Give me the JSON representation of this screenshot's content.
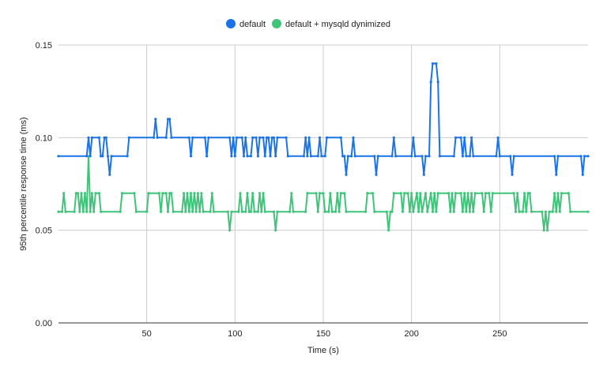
{
  "chart_data": {
    "type": "line",
    "title": "",
    "xlabel": "Time (s)",
    "ylabel": "95th percentile response time (ms)",
    "xlim": [
      0,
      300
    ],
    "ylim": [
      0,
      0.15
    ],
    "x_ticks": [
      50,
      100,
      150,
      200,
      250
    ],
    "y_ticks": [
      0.0,
      0.05,
      0.1,
      0.15
    ],
    "y_tick_labels": [
      "0.00",
      "0.05",
      "0.10",
      "0.15"
    ],
    "grid": true,
    "legend_position": "top",
    "series": [
      {
        "name": "default",
        "color": "#1a73e8",
        "points": [
          [
            0,
            0.09
          ],
          [
            16,
            0.09
          ],
          [
            17,
            0.1
          ],
          [
            18,
            0.09
          ],
          [
            19,
            0.1
          ],
          [
            23,
            0.1
          ],
          [
            24,
            0.09
          ],
          [
            25,
            0.09
          ],
          [
            26,
            0.1
          ],
          [
            27,
            0.1
          ],
          [
            28,
            0.09
          ],
          [
            29,
            0.08
          ],
          [
            30,
            0.09
          ],
          [
            39,
            0.09
          ],
          [
            40,
            0.1
          ],
          [
            54,
            0.1
          ],
          [
            55,
            0.11
          ],
          [
            56,
            0.1
          ],
          [
            61,
            0.1
          ],
          [
            62,
            0.11
          ],
          [
            63,
            0.11
          ],
          [
            64,
            0.1
          ],
          [
            74,
            0.1
          ],
          [
            75,
            0.09
          ],
          [
            76,
            0.1
          ],
          [
            83,
            0.1
          ],
          [
            84,
            0.09
          ],
          [
            85,
            0.1
          ],
          [
            97,
            0.1
          ],
          [
            98,
            0.09
          ],
          [
            99,
            0.1
          ],
          [
            100,
            0.09
          ],
          [
            101,
            0.1
          ],
          [
            104,
            0.1
          ],
          [
            105,
            0.09
          ],
          [
            106,
            0.1
          ],
          [
            107,
            0.09
          ],
          [
            109,
            0.09
          ],
          [
            110,
            0.1
          ],
          [
            112,
            0.1
          ],
          [
            113,
            0.09
          ],
          [
            114,
            0.1
          ],
          [
            116,
            0.1
          ],
          [
            117,
            0.09
          ],
          [
            118,
            0.1
          ],
          [
            119,
            0.1
          ],
          [
            120,
            0.09
          ],
          [
            121,
            0.1
          ],
          [
            122,
            0.1
          ],
          [
            123,
            0.09
          ],
          [
            124,
            0.1
          ],
          [
            129,
            0.1
          ],
          [
            130,
            0.09
          ],
          [
            139,
            0.09
          ],
          [
            140,
            0.1
          ],
          [
            141,
            0.09
          ],
          [
            142,
            0.1
          ],
          [
            143,
            0.09
          ],
          [
            147,
            0.09
          ],
          [
            148,
            0.1
          ],
          [
            149,
            0.09
          ],
          [
            151,
            0.09
          ],
          [
            152,
            0.1
          ],
          [
            160,
            0.1
          ],
          [
            161,
            0.09
          ],
          [
            162,
            0.09
          ],
          [
            163,
            0.08
          ],
          [
            164,
            0.09
          ],
          [
            166,
            0.09
          ],
          [
            167,
            0.1
          ],
          [
            168,
            0.09
          ],
          [
            179,
            0.09
          ],
          [
            180,
            0.08
          ],
          [
            181,
            0.09
          ],
          [
            189,
            0.09
          ],
          [
            190,
            0.1
          ],
          [
            191,
            0.09
          ],
          [
            200,
            0.09
          ],
          [
            201,
            0.1
          ],
          [
            202,
            0.09
          ],
          [
            206,
            0.09
          ],
          [
            207,
            0.08
          ],
          [
            208,
            0.09
          ],
          [
            210,
            0.09
          ],
          [
            211,
            0.13
          ],
          [
            212,
            0.14
          ],
          [
            214,
            0.14
          ],
          [
            215,
            0.13
          ],
          [
            216,
            0.09
          ],
          [
            224,
            0.09
          ],
          [
            225,
            0.1
          ],
          [
            228,
            0.1
          ],
          [
            229,
            0.09
          ],
          [
            230,
            0.1
          ],
          [
            231,
            0.09
          ],
          [
            233,
            0.09
          ],
          [
            234,
            0.1
          ],
          [
            235,
            0.09
          ],
          [
            248,
            0.09
          ],
          [
            249,
            0.1
          ],
          [
            250,
            0.09
          ],
          [
            256,
            0.09
          ],
          [
            257,
            0.08
          ],
          [
            258,
            0.09
          ],
          [
            281,
            0.09
          ],
          [
            282,
            0.08
          ],
          [
            283,
            0.09
          ],
          [
            296,
            0.09
          ],
          [
            297,
            0.08
          ],
          [
            298,
            0.09
          ],
          [
            300,
            0.09
          ]
        ]
      },
      {
        "name": "default + mysqld dynimized",
        "color": "#3fc47a",
        "points": [
          [
            0,
            0.06
          ],
          [
            2,
            0.06
          ],
          [
            3,
            0.07
          ],
          [
            4,
            0.06
          ],
          [
            9,
            0.06
          ],
          [
            10,
            0.07
          ],
          [
            11,
            0.07
          ],
          [
            12,
            0.06
          ],
          [
            13,
            0.07
          ],
          [
            14,
            0.06
          ],
          [
            15,
            0.07
          ],
          [
            16,
            0.06
          ],
          [
            17,
            0.09
          ],
          [
            18,
            0.06
          ],
          [
            19,
            0.07
          ],
          [
            20,
            0.06
          ],
          [
            21,
            0.07
          ],
          [
            23,
            0.07
          ],
          [
            24,
            0.06
          ],
          [
            35,
            0.06
          ],
          [
            36,
            0.07
          ],
          [
            43,
            0.07
          ],
          [
            44,
            0.06
          ],
          [
            50,
            0.06
          ],
          [
            51,
            0.07
          ],
          [
            57,
            0.07
          ],
          [
            58,
            0.06
          ],
          [
            59,
            0.07
          ],
          [
            61,
            0.07
          ],
          [
            62,
            0.06
          ],
          [
            63,
            0.07
          ],
          [
            64,
            0.07
          ],
          [
            65,
            0.06
          ],
          [
            70,
            0.06
          ],
          [
            71,
            0.07
          ],
          [
            72,
            0.06
          ],
          [
            73,
            0.07
          ],
          [
            74,
            0.06
          ],
          [
            75,
            0.07
          ],
          [
            76,
            0.06
          ],
          [
            77,
            0.07
          ],
          [
            78,
            0.06
          ],
          [
            79,
            0.07
          ],
          [
            80,
            0.06
          ],
          [
            81,
            0.07
          ],
          [
            82,
            0.06
          ],
          [
            86,
            0.06
          ],
          [
            87,
            0.07
          ],
          [
            88,
            0.06
          ],
          [
            96,
            0.06
          ],
          [
            97,
            0.05
          ],
          [
            98,
            0.06
          ],
          [
            102,
            0.06
          ],
          [
            103,
            0.07
          ],
          [
            104,
            0.06
          ],
          [
            106,
            0.06
          ],
          [
            107,
            0.07
          ],
          [
            108,
            0.06
          ],
          [
            109,
            0.06
          ],
          [
            110,
            0.07
          ],
          [
            111,
            0.06
          ],
          [
            113,
            0.06
          ],
          [
            114,
            0.07
          ],
          [
            115,
            0.06
          ],
          [
            116,
            0.07
          ],
          [
            117,
            0.06
          ],
          [
            122,
            0.06
          ],
          [
            123,
            0.05
          ],
          [
            124,
            0.06
          ],
          [
            131,
            0.06
          ],
          [
            132,
            0.07
          ],
          [
            133,
            0.06
          ],
          [
            140,
            0.06
          ],
          [
            141,
            0.07
          ],
          [
            146,
            0.07
          ],
          [
            147,
            0.06
          ],
          [
            148,
            0.07
          ],
          [
            150,
            0.07
          ],
          [
            151,
            0.06
          ],
          [
            153,
            0.06
          ],
          [
            154,
            0.07
          ],
          [
            155,
            0.06
          ],
          [
            157,
            0.06
          ],
          [
            158,
            0.07
          ],
          [
            159,
            0.06
          ],
          [
            160,
            0.07
          ],
          [
            162,
            0.07
          ],
          [
            163,
            0.06
          ],
          [
            174,
            0.06
          ],
          [
            175,
            0.07
          ],
          [
            178,
            0.07
          ],
          [
            179,
            0.06
          ],
          [
            186,
            0.06
          ],
          [
            187,
            0.05
          ],
          [
            188,
            0.06
          ],
          [
            189,
            0.06
          ],
          [
            190,
            0.07
          ],
          [
            194,
            0.07
          ],
          [
            195,
            0.06
          ],
          [
            196,
            0.07
          ],
          [
            198,
            0.07
          ],
          [
            199,
            0.06
          ],
          [
            200,
            0.07
          ],
          [
            201,
            0.06
          ],
          [
            203,
            0.07
          ],
          [
            204,
            0.06
          ],
          [
            205,
            0.07
          ],
          [
            206,
            0.06
          ],
          [
            208,
            0.07
          ],
          [
            209,
            0.06
          ],
          [
            211,
            0.07
          ],
          [
            212,
            0.06
          ],
          [
            213,
            0.07
          ],
          [
            214,
            0.06
          ],
          [
            215,
            0.07
          ],
          [
            221,
            0.07
          ],
          [
            222,
            0.06
          ],
          [
            223,
            0.07
          ],
          [
            224,
            0.06
          ],
          [
            225,
            0.07
          ],
          [
            228,
            0.07
          ],
          [
            229,
            0.06
          ],
          [
            230,
            0.07
          ],
          [
            231,
            0.06
          ],
          [
            232,
            0.07
          ],
          [
            233,
            0.06
          ],
          [
            234,
            0.07
          ],
          [
            235,
            0.06
          ],
          [
            236,
            0.07
          ],
          [
            240,
            0.07
          ],
          [
            241,
            0.06
          ],
          [
            242,
            0.07
          ],
          [
            244,
            0.07
          ],
          [
            245,
            0.06
          ],
          [
            246,
            0.07
          ],
          [
            258,
            0.07
          ],
          [
            259,
            0.06
          ],
          [
            260,
            0.07
          ],
          [
            261,
            0.06
          ],
          [
            263,
            0.06
          ],
          [
            264,
            0.07
          ],
          [
            265,
            0.06
          ],
          [
            266,
            0.07
          ],
          [
            267,
            0.07
          ],
          [
            268,
            0.06
          ],
          [
            274,
            0.06
          ],
          [
            275,
            0.05
          ],
          [
            276,
            0.06
          ],
          [
            277,
            0.05
          ],
          [
            278,
            0.06
          ],
          [
            280,
            0.06
          ],
          [
            281,
            0.07
          ],
          [
            282,
            0.06
          ],
          [
            283,
            0.07
          ],
          [
            284,
            0.06
          ],
          [
            285,
            0.07
          ],
          [
            289,
            0.07
          ],
          [
            290,
            0.06
          ],
          [
            300,
            0.06
          ]
        ]
      }
    ]
  }
}
